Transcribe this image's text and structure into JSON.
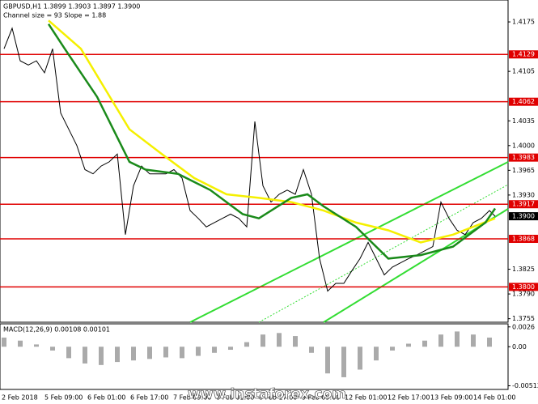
{
  "chart_data": {
    "type": "price",
    "title": "GBPUSD,H1  1.3899 1.3903 1.3897 1.3900",
    "subtitle": "Channel size = 93 Slope = 1.88",
    "watermark": "www.instaforex.com",
    "categories": [
      "2 Feb 2018",
      "5 Feb 09:00",
      "6 Feb 01:00",
      "6 Feb 17:00",
      "7 Feb 09:00",
      "8 Feb 01:00",
      "8 Feb 17:00",
      "9 Feb 09:00",
      "12 Feb 01:00",
      "12 Feb 17:00",
      "13 Feb 09:00",
      "14 Feb 01:00"
    ],
    "xlim": [
      -0.5,
      62.3
    ],
    "ylim": [
      1.375,
      1.4206
    ],
    "yticks": [
      {
        "value": 1.4175,
        "label": "1.4175"
      },
      {
        "value": 1.4105,
        "label": "1.4105"
      },
      {
        "value": 1.4035,
        "label": "1.4035"
      },
      {
        "value": 1.4,
        "label": "1.4000"
      },
      {
        "value": 1.3965,
        "label": "1.3965"
      },
      {
        "value": 1.393,
        "label": "1.3930"
      },
      {
        "value": 1.3825,
        "label": "1.3825"
      },
      {
        "value": 1.379,
        "label": "1.3790"
      },
      {
        "value": 1.3755,
        "label": "1.3755"
      }
    ],
    "levels": [
      {
        "value": 1.4129,
        "label": "1.4129"
      },
      {
        "value": 1.4062,
        "label": "1.4062"
      },
      {
        "value": 1.3983,
        "label": "1.3983"
      },
      {
        "value": 1.3917,
        "label": "1.3917"
      },
      {
        "value": 1.3868,
        "label": "1.3868"
      },
      {
        "value": 1.38,
        "label": "1.3800"
      }
    ],
    "level_color": "#e00000",
    "current_price": {
      "value": 1.39,
      "label": "1.3900"
    },
    "series": [
      {
        "name": "price",
        "color": "#000000",
        "x": [
          0,
          1,
          2,
          3,
          4,
          5,
          6,
          7,
          8,
          9,
          10,
          11,
          12,
          13,
          14,
          15,
          16,
          17,
          18,
          19,
          20,
          21,
          22,
          23,
          24,
          25,
          26,
          27,
          28,
          29,
          30,
          31,
          32,
          33,
          34,
          35,
          36,
          37,
          38,
          39,
          40,
          41,
          42,
          43,
          44,
          45,
          46,
          47,
          48,
          49,
          50,
          51,
          52,
          53,
          54,
          55,
          56,
          57,
          58,
          59,
          60,
          60.7
        ],
        "values": [
          1.4137,
          1.4166,
          1.412,
          1.4114,
          1.412,
          1.4103,
          1.4137,
          1.4046,
          1.4023,
          1.4,
          1.3966,
          1.396,
          1.3971,
          1.3977,
          1.3988,
          1.3874,
          1.3943,
          1.3971,
          1.396,
          1.396,
          1.396,
          1.3966,
          1.3954,
          1.3908,
          1.3897,
          1.3885,
          1.3891,
          1.3897,
          1.3903,
          1.3897,
          1.3885,
          1.4034,
          1.3943,
          1.392,
          1.3931,
          1.3937,
          1.3931,
          1.3966,
          1.3931,
          1.384,
          1.3794,
          1.3805,
          1.3805,
          1.3823,
          1.384,
          1.3863,
          1.384,
          1.3817,
          1.3828,
          1.3834,
          1.384,
          1.3845,
          1.3851,
          1.3857,
          1.392,
          1.3897,
          1.388,
          1.3874,
          1.3891,
          1.3897,
          1.3908,
          1.39
        ]
      },
      {
        "name": "slow-ma",
        "color": "#f5f000",
        "x": [
          5.5,
          9.5,
          12.5,
          15.5,
          19.5,
          23.5,
          27.5,
          31.5,
          35.5,
          39.5,
          43.5,
          47.5,
          51.5,
          55.5,
          60.7
        ],
        "values": [
          1.4177,
          1.4137,
          1.408,
          1.4023,
          1.3988,
          1.3954,
          1.3931,
          1.3926,
          1.392,
          1.3908,
          1.3891,
          1.388,
          1.3863,
          1.3874,
          1.3897
        ]
      },
      {
        "name": "fast-ma",
        "color": "#1a8a1a",
        "x": [
          5.5,
          7.5,
          9.5,
          11.5,
          13.5,
          15.5,
          17.5,
          21.5,
          25.5,
          29.5,
          31.5,
          35.5,
          37.5,
          39.5,
          43.5,
          47.5,
          51.5,
          55.5,
          59.5,
          60.7
        ],
        "values": [
          1.4172,
          1.4137,
          1.4103,
          1.4069,
          1.4023,
          1.3977,
          1.3966,
          1.396,
          1.3937,
          1.3903,
          1.3897,
          1.3926,
          1.3931,
          1.3914,
          1.3885,
          1.384,
          1.3845,
          1.3857,
          1.3891,
          1.3911
        ]
      }
    ],
    "macd": {
      "label": "MACD(12,26,9) 0.00108 0.00101",
      "color": "#aaaaaa",
      "ylim": [
        -0.0056,
        0.003
      ],
      "yticks": [
        {
          "value": 0.0026,
          "label": "0.0026"
        },
        {
          "value": 0,
          "label": "0.00"
        },
        {
          "value": -0.00512,
          "label": "-0.00512"
        }
      ],
      "x": [
        0,
        2,
        4,
        6,
        8,
        10,
        12,
        14,
        16,
        18,
        20,
        22,
        24,
        26,
        28,
        30,
        32,
        34,
        36,
        38,
        40,
        42,
        44,
        46,
        48,
        50,
        52,
        54,
        56,
        58,
        60
      ],
      "values": [
        0.0012,
        0.0008,
        0.0003,
        -0.0005,
        -0.0015,
        -0.0022,
        -0.0024,
        -0.002,
        -0.0018,
        -0.0016,
        -0.0014,
        -0.0015,
        -0.0012,
        -0.0008,
        -0.0004,
        0.0006,
        0.0016,
        0.0018,
        0.0014,
        -0.0008,
        -0.0035,
        -0.004,
        -0.003,
        -0.0018,
        -0.0005,
        0.0004,
        0.0008,
        0.0016,
        0.002,
        0.0016,
        0.0012
      ]
    }
  }
}
